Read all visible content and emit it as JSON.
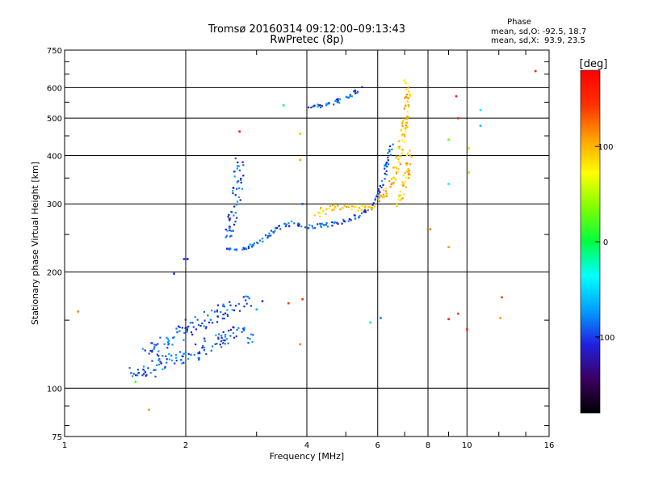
{
  "chart_data": {
    "type": "scatter",
    "title": "Tromsø 20160314 09:12:00–09:13:43",
    "subtitle": "RwPretec (8p)",
    "xlabel": "Frequency [MHz]",
    "ylabel": "Stationary phase Virtual Height [km]",
    "x_scale": "log",
    "y_scale": "log",
    "xlim": [
      1,
      16
    ],
    "ylim": [
      75,
      750
    ],
    "x_ticks": [
      1,
      2,
      4,
      6,
      8,
      10,
      16
    ],
    "y_ticks": [
      75,
      100,
      200,
      300,
      400,
      500,
      600,
      750
    ],
    "grid": true,
    "phase_box": {
      "title": "Phase",
      "line1": "mean, sd,O: -92.5, 18.7",
      "line2": "mean, sd,X:  93.9, 23.5"
    },
    "colorbar": {
      "label": "[deg]",
      "min": -180,
      "max": 180,
      "ticks": [
        100,
        0,
        -100
      ],
      "colormap": [
        "#000000",
        "#3c0060",
        "#2020e0",
        "#00a0ff",
        "#00ffff",
        "#00ff40",
        "#80ff00",
        "#ffff00",
        "#ffa000",
        "#ff3000",
        "#ff0000"
      ]
    },
    "o_trace_segments": [
      [
        [
          1.45,
          112
        ],
        [
          1.6,
          110
        ],
        [
          1.75,
          117
        ],
        [
          1.9,
          121
        ],
        [
          2.05,
          120
        ],
        [
          2.2,
          128
        ],
        [
          2.45,
          133
        ],
        [
          2.75,
          140
        ],
        [
          2.95,
          136
        ]
      ],
      [
        [
          1.6,
          124
        ],
        [
          1.8,
          133
        ],
        [
          2.0,
          143
        ],
        [
          2.3,
          152
        ],
        [
          2.65,
          162
        ],
        [
          2.85,
          170
        ]
      ],
      [
        [
          2.55,
          228
        ],
        [
          2.7,
          230
        ],
        [
          2.9,
          233
        ],
        [
          3.1,
          242
        ],
        [
          3.4,
          260
        ],
        [
          3.7,
          268
        ],
        [
          4.0,
          262
        ],
        [
          4.4,
          264
        ],
        [
          4.9,
          268
        ],
        [
          5.4,
          280
        ],
        [
          5.8,
          293
        ],
        [
          6.0,
          315
        ],
        [
          6.2,
          345
        ],
        [
          6.35,
          390
        ],
        [
          6.5,
          430
        ]
      ],
      [
        [
          2.55,
          240
        ],
        [
          2.6,
          270
        ],
        [
          2.65,
          300
        ],
        [
          2.7,
          340
        ],
        [
          2.72,
          390
        ]
      ],
      [
        [
          4.0,
          536
        ],
        [
          4.5,
          540
        ],
        [
          5.0,
          565
        ],
        [
          5.5,
          605
        ]
      ]
    ],
    "x_trace_segments": [
      [
        [
          4.2,
          282
        ],
        [
          4.6,
          293
        ],
        [
          5.1,
          290
        ],
        [
          5.6,
          293
        ],
        [
          6.0,
          300
        ],
        [
          6.3,
          320
        ],
        [
          6.6,
          360
        ],
        [
          6.85,
          420
        ],
        [
          7.0,
          480
        ],
        [
          7.1,
          560
        ],
        [
          7.05,
          630
        ]
      ],
      [
        [
          6.6,
          300
        ],
        [
          6.9,
          320
        ],
        [
          7.1,
          360
        ],
        [
          7.2,
          410
        ]
      ]
    ],
    "scattered_points": [
      {
        "x": 1.08,
        "y": 158,
        "phase": 120
      },
      {
        "x": 1.5,
        "y": 104,
        "phase": 20
      },
      {
        "x": 1.62,
        "y": 88,
        "phase": 110
      },
      {
        "x": 1.87,
        "y": 198,
        "phase": -100
      },
      {
        "x": 1.98,
        "y": 216,
        "phase": -100
      },
      {
        "x": 2.02,
        "y": 216,
        "phase": -110
      },
      {
        "x": 2.72,
        "y": 462,
        "phase": 160
      },
      {
        "x": 3.0,
        "y": 160,
        "phase": -70
      },
      {
        "x": 3.1,
        "y": 168,
        "phase": -100
      },
      {
        "x": 3.5,
        "y": 540,
        "phase": -20
      },
      {
        "x": 3.6,
        "y": 166,
        "phase": 140
      },
      {
        "x": 3.9,
        "y": 300,
        "phase": -90
      },
      {
        "x": 3.9,
        "y": 170,
        "phase": 150
      },
      {
        "x": 3.85,
        "y": 130,
        "phase": 120
      },
      {
        "x": 3.85,
        "y": 456,
        "phase": 100
      },
      {
        "x": 3.85,
        "y": 390,
        "phase": 110
      },
      {
        "x": 6.1,
        "y": 152,
        "phase": -80
      },
      {
        "x": 5.75,
        "y": 148,
        "phase": -10
      },
      {
        "x": 8.1,
        "y": 258,
        "phase": 120
      },
      {
        "x": 9.0,
        "y": 338,
        "phase": -30
      },
      {
        "x": 9.0,
        "y": 232,
        "phase": 110
      },
      {
        "x": 9.0,
        "y": 151,
        "phase": 160
      },
      {
        "x": 9.0,
        "y": 440,
        "phase": 30
      },
      {
        "x": 9.4,
        "y": 570,
        "phase": 165
      },
      {
        "x": 9.5,
        "y": 500,
        "phase": 150
      },
      {
        "x": 9.5,
        "y": 156,
        "phase": 140
      },
      {
        "x": 10.0,
        "y": 142,
        "phase": 160
      },
      {
        "x": 10.1,
        "y": 362,
        "phase": 40
      },
      {
        "x": 10.1,
        "y": 418,
        "phase": 50
      },
      {
        "x": 10.8,
        "y": 525,
        "phase": -40
      },
      {
        "x": 10.8,
        "y": 478,
        "phase": -60
      },
      {
        "x": 12.2,
        "y": 172,
        "phase": 140
      },
      {
        "x": 12.1,
        "y": 152,
        "phase": 110
      },
      {
        "x": 14.8,
        "y": 662,
        "phase": 160
      }
    ]
  }
}
